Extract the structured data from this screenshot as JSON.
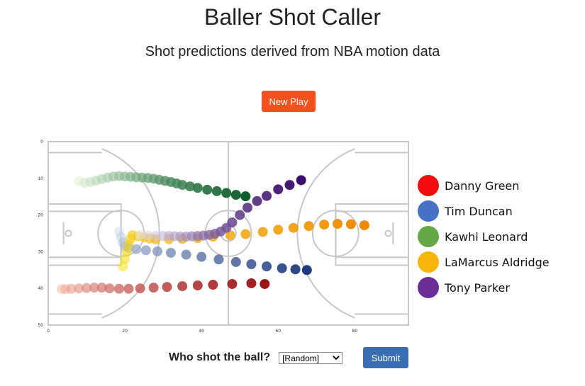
{
  "header": {
    "title": "Baller Shot Caller",
    "subtitle": "Shot predictions derived from NBA motion data"
  },
  "controls": {
    "new_play_label": "New Play",
    "question": "Who shot the ball?",
    "select_value": "[Random]",
    "submit_label": "Submit"
  },
  "legend": [
    {
      "name": "Danny Green",
      "color": "#f40d10"
    },
    {
      "name": "Tim Duncan",
      "color": "#4870c5"
    },
    {
      "name": "Kawhi Leonard",
      "color": "#65a647"
    },
    {
      "name": "LaMarcus Aldridge",
      "color": "#f8b50b"
    },
    {
      "name": "Tony Parker",
      "color": "#6a2e96"
    }
  ],
  "chart_data": {
    "type": "scatter",
    "title": "",
    "xlabel": "",
    "ylabel": "",
    "xlim": [
      0,
      94
    ],
    "ylim": [
      50,
      0
    ],
    "xticks": [
      "0",
      "20",
      "40",
      "60",
      "80"
    ],
    "yticks": [
      "0",
      "10",
      "20",
      "30",
      "40",
      "50"
    ],
    "series": [
      {
        "name": "Danny Green",
        "color_start": "#f8b8a4",
        "color_end": "#9c1418",
        "x": [
          3.5,
          4.5,
          6,
          8,
          10,
          12,
          14,
          16,
          18.5,
          21,
          24,
          27.5,
          31,
          35,
          39,
          43,
          48,
          53,
          56.5
        ],
        "y": [
          40.2,
          40.2,
          40.1,
          40.0,
          39.9,
          39.8,
          39.8,
          40.0,
          40.1,
          40.1,
          40.0,
          39.8,
          39.6,
          39.4,
          39.2,
          39.0,
          38.8,
          38.6,
          38.8
        ]
      },
      {
        "name": "Tim Duncan",
        "color_start": "#d2dff0",
        "color_end": "#1c3a7d",
        "x": [
          18.5,
          19,
          19.5,
          20,
          21,
          23,
          25.5,
          28.5,
          32,
          36,
          40,
          44.5,
          49,
          53,
          57,
          61,
          64.5,
          67.5
        ],
        "y": [
          24.5,
          26.0,
          27.5,
          28.5,
          29.0,
          29.3,
          29.6,
          29.9,
          30.3,
          30.8,
          31.4,
          32.1,
          32.8,
          33.4,
          34.0,
          34.5,
          34.8,
          35.0
        ]
      },
      {
        "name": "Kawhi Leonard",
        "color_start": "#e0f2d6",
        "color_end": "#0d5f2d",
        "x": [
          8,
          9.5,
          11,
          12.5,
          14,
          15.5,
          17,
          18.5,
          20,
          21.5,
          23,
          24.5,
          26,
          27.5,
          29,
          30.5,
          32,
          33.5,
          35,
          37,
          39,
          41.5,
          44,
          46.5,
          49,
          51.5
        ],
        "y": [
          10.8,
          11.2,
          11.0,
          10.6,
          10.2,
          9.8,
          9.5,
          9.4,
          9.5,
          9.6,
          9.7,
          9.8,
          9.9,
          10.1,
          10.4,
          10.7,
          11.0,
          11.4,
          11.8,
          12.2,
          12.6,
          13.1,
          13.5,
          14.0,
          14.5,
          14.9
        ]
      },
      {
        "name": "LaMarcus Aldridge",
        "color_start": "#f5e316",
        "color_end": "#f08a00",
        "x": [
          19.5,
          20,
          20.5,
          21,
          21.5,
          22,
          23.5,
          25,
          26.5,
          28,
          31.5,
          35,
          39,
          43,
          47.5,
          51.5,
          56,
          60,
          64,
          68,
          72,
          75.5,
          79,
          82.5
        ],
        "y": [
          34.0,
          32.0,
          30.0,
          28.0,
          26.5,
          25.5,
          25.8,
          26.1,
          26.4,
          26.6,
          26.6,
          26.5,
          26.3,
          25.9,
          25.5,
          25.2,
          24.6,
          24.0,
          23.5,
          23.0,
          22.6,
          22.4,
          22.5,
          22.8
        ]
      },
      {
        "name": "Tony Parker",
        "color_start": "#e8e4f2",
        "color_end": "#3a0c6c",
        "x": [
          24,
          26,
          28,
          30,
          31.5,
          33,
          34.5,
          36,
          37.5,
          39,
          40.5,
          42,
          43.5,
          45,
          46.5,
          48,
          50,
          52,
          54.5,
          57,
          60,
          63,
          66
        ],
        "y": [
          25.4,
          25.6,
          25.7,
          25.7,
          25.7,
          25.8,
          25.9,
          25.9,
          25.8,
          25.7,
          25.6,
          25.4,
          25.1,
          24.5,
          23.5,
          22.0,
          20.0,
          18.0,
          16.2,
          14.8,
          13.0,
          11.8,
          10.5
        ]
      }
    ]
  }
}
